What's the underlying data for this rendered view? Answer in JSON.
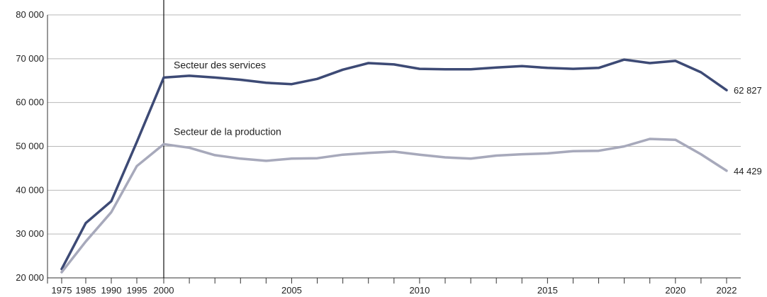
{
  "chart_data": {
    "type": "line",
    "x_tick_labels": [
      "1975",
      "1985",
      "1990",
      "1995",
      "2000",
      "2005",
      "2010",
      "2015",
      "2020",
      "2022"
    ],
    "y_tick_labels": [
      "20 000",
      "30 000",
      "40 000",
      "50 000",
      "60 000",
      "70 000",
      "80 000"
    ],
    "ylim": [
      20000,
      80000
    ],
    "grid": true,
    "annotations": {
      "divider_after": "2000"
    },
    "series": [
      {
        "name": "Secteur des services",
        "color": "#3d4a75",
        "end_label": "62 827",
        "points": [
          [
            "1975",
            22000
          ],
          [
            "1985",
            32500
          ],
          [
            "1990",
            37500
          ],
          [
            "1995",
            51000
          ],
          [
            "2000",
            65700
          ],
          [
            "2001",
            66100
          ],
          [
            "2002",
            65700
          ],
          [
            "2003",
            65200
          ],
          [
            "2004",
            64500
          ],
          [
            "2005",
            64200
          ],
          [
            "2006",
            65400
          ],
          [
            "2007",
            67500
          ],
          [
            "2008",
            69000
          ],
          [
            "2009",
            68700
          ],
          [
            "2010",
            67700
          ],
          [
            "2011",
            67600
          ],
          [
            "2012",
            67600
          ],
          [
            "2013",
            68000
          ],
          [
            "2014",
            68300
          ],
          [
            "2015",
            67900
          ],
          [
            "2016",
            67700
          ],
          [
            "2017",
            67900
          ],
          [
            "2018",
            69800
          ],
          [
            "2019",
            69000
          ],
          [
            "2020",
            69500
          ],
          [
            "2021",
            66900
          ],
          [
            "2022",
            62827
          ]
        ]
      },
      {
        "name": "Secteur de la production",
        "color": "#a7a9bb",
        "end_label": "44 429",
        "points": [
          [
            "1975",
            21300
          ],
          [
            "1985",
            28300
          ],
          [
            "1990",
            35000
          ],
          [
            "1995",
            45500
          ],
          [
            "2000",
            50500
          ],
          [
            "2001",
            49700
          ],
          [
            "2002",
            48000
          ],
          [
            "2003",
            47200
          ],
          [
            "2004",
            46700
          ],
          [
            "2005",
            47200
          ],
          [
            "2006",
            47300
          ],
          [
            "2007",
            48100
          ],
          [
            "2008",
            48500
          ],
          [
            "2009",
            48800
          ],
          [
            "2010",
            48100
          ],
          [
            "2011",
            47500
          ],
          [
            "2012",
            47200
          ],
          [
            "2013",
            47900
          ],
          [
            "2014",
            48200
          ],
          [
            "2015",
            48400
          ],
          [
            "2016",
            48900
          ],
          [
            "2017",
            49000
          ],
          [
            "2018",
            50000
          ],
          [
            "2019",
            51700
          ],
          [
            "2020",
            51500
          ],
          [
            "2021",
            48200
          ],
          [
            "2022",
            44429
          ]
        ]
      }
    ]
  }
}
